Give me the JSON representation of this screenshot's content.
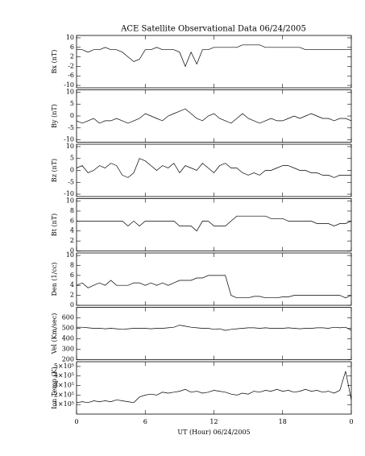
{
  "chart_data": [
    {
      "type": "line",
      "title": "ACE Satellite Observational Data  06/24/2005",
      "y_label": "Bx (nT)",
      "x": [
        0,
        0.5,
        1,
        1.5,
        2,
        2.5,
        3,
        3.5,
        4,
        4.5,
        5,
        5.5,
        6,
        6.5,
        7,
        7.5,
        8,
        8.5,
        9,
        9.5,
        10,
        10.5,
        11,
        11.5,
        12,
        12.5,
        13,
        13.5,
        14,
        14.5,
        15,
        15.5,
        16,
        16.5,
        17,
        17.5,
        18,
        18.5,
        19,
        19.5,
        20,
        20.5,
        21,
        21.5,
        22,
        22.5,
        23,
        23.5,
        24
      ],
      "values": [
        5,
        5,
        4,
        5,
        5,
        6,
        5,
        5,
        4,
        2,
        0,
        1,
        5,
        5,
        6,
        5,
        5,
        5,
        4,
        -2,
        4,
        -1,
        5,
        5,
        6,
        6,
        6,
        6,
        6,
        7,
        7,
        7,
        7,
        6,
        6,
        6,
        6,
        6,
        6,
        6,
        5,
        5,
        5,
        5,
        5,
        5,
        5,
        5,
        5
      ],
      "color": "#000000",
      "xlim": [
        0,
        24
      ],
      "xticks": [
        0,
        6,
        12,
        18,
        24
      ],
      "ylim": [
        -11,
        11
      ],
      "yticks": [
        -10,
        -6,
        -2,
        2,
        6,
        10
      ]
    },
    {
      "type": "line",
      "y_label": "By (nT)",
      "x": [
        0,
        0.5,
        1,
        1.5,
        2,
        2.5,
        3,
        3.5,
        4,
        4.5,
        5,
        5.5,
        6,
        6.5,
        7,
        7.5,
        8,
        8.5,
        9,
        9.5,
        10,
        10.5,
        11,
        11.5,
        12,
        12.5,
        13,
        13.5,
        14,
        14.5,
        15,
        15.5,
        16,
        16.5,
        17,
        17.5,
        18,
        18.5,
        19,
        19.5,
        20,
        20.5,
        21,
        21.5,
        22,
        22.5,
        23,
        23.5,
        24
      ],
      "values": [
        -2,
        -3,
        -2,
        -1,
        -3,
        -2,
        -2,
        -1,
        -2,
        -3,
        -2,
        -1,
        1,
        0,
        -1,
        -2,
        0,
        1,
        2,
        3,
        1,
        -1,
        -2,
        0,
        1,
        -1,
        -2,
        -3,
        -1,
        1,
        -1,
        -2,
        -3,
        -2,
        -1,
        -2,
        -2,
        -1,
        0,
        -1,
        0,
        1,
        0,
        -1,
        -1,
        -2,
        -1,
        -1,
        -2
      ],
      "color": "#000000",
      "xlim": [
        0,
        24
      ],
      "xticks": [
        0,
        6,
        12,
        18,
        24
      ],
      "ylim": [
        -11,
        11
      ],
      "yticks": [
        -10,
        -5,
        0,
        5,
        10
      ]
    },
    {
      "type": "line",
      "y_label": "Bz (nT)",
      "x": [
        0,
        0.5,
        1,
        1.5,
        2,
        2.5,
        3,
        3.5,
        4,
        4.5,
        5,
        5.5,
        6,
        6.5,
        7,
        7.5,
        8,
        8.5,
        9,
        9.5,
        10,
        10.5,
        11,
        11.5,
        12,
        12.5,
        13,
        13.5,
        14,
        14.5,
        15,
        15.5,
        16,
        16.5,
        17,
        17.5,
        18,
        18.5,
        19,
        19.5,
        20,
        20.5,
        21,
        21.5,
        22,
        22.5,
        23,
        23.5,
        24
      ],
      "values": [
        1,
        2,
        -1,
        0,
        2,
        1,
        3,
        2,
        -2,
        -3,
        -1,
        5,
        4,
        2,
        0,
        2,
        1,
        3,
        -1,
        2,
        1,
        0,
        3,
        1,
        -1,
        2,
        3,
        1,
        1,
        -1,
        -2,
        -1,
        -2,
        0,
        0,
        1,
        2,
        2,
        1,
        0,
        0,
        -1,
        -1,
        -2,
        -2,
        -3,
        -2,
        -2,
        -2
      ],
      "color": "#000000",
      "xlim": [
        0,
        24
      ],
      "xticks": [
        0,
        6,
        12,
        18,
        24
      ],
      "ylim": [
        -11,
        11
      ],
      "yticks": [
        -10,
        -5,
        0,
        5,
        10
      ]
    },
    {
      "type": "line",
      "y_label": "Bt (nT)",
      "x": [
        0,
        0.5,
        1,
        1.5,
        2,
        2.5,
        3,
        3.5,
        4,
        4.5,
        5,
        5.5,
        6,
        6.5,
        7,
        7.5,
        8,
        8.5,
        9,
        9.5,
        10,
        10.5,
        11,
        11.5,
        12,
        12.5,
        13,
        13.5,
        14,
        14.5,
        15,
        15.5,
        16,
        16.5,
        17,
        17.5,
        18,
        18.5,
        19,
        19.5,
        20,
        20.5,
        21,
        21.5,
        22,
        22.5,
        23,
        23.5,
        24
      ],
      "values": [
        6,
        6,
        6,
        6,
        6,
        6,
        6,
        6,
        6,
        5,
        6,
        5,
        6,
        6,
        6,
        6,
        6,
        6,
        5,
        5,
        5,
        4,
        6,
        6,
        5,
        5,
        5,
        6,
        7,
        7,
        7,
        7,
        7,
        7,
        6.5,
        6.5,
        6.5,
        6,
        6,
        6,
        6,
        6,
        5.5,
        5.5,
        5.5,
        5,
        5.5,
        5.5,
        6
      ],
      "color": "#000000",
      "xlim": [
        0,
        24
      ],
      "xticks": [
        0,
        6,
        12,
        18,
        24
      ],
      "ylim": [
        0,
        10.5
      ],
      "yticks": [
        0,
        2,
        4,
        6,
        8,
        10
      ]
    },
    {
      "type": "line",
      "y_label": "Den (1/cc)",
      "x": [
        0,
        0.5,
        1,
        1.5,
        2,
        2.5,
        3,
        3.5,
        4,
        4.5,
        5,
        5.5,
        6,
        6.5,
        7,
        7.5,
        8,
        8.5,
        9,
        9.5,
        10,
        10.5,
        11,
        11.5,
        12,
        12.5,
        13,
        13.5,
        14,
        14.5,
        15,
        15.5,
        16,
        16.5,
        17,
        17.5,
        18,
        18.5,
        19,
        19.5,
        20,
        20.5,
        21,
        21.5,
        22,
        22.5,
        23,
        23.5,
        24
      ],
      "values": [
        4,
        4.5,
        3.5,
        4,
        4.5,
        4,
        5,
        4,
        4,
        4,
        4.5,
        4.5,
        4,
        4.5,
        4,
        4.5,
        4,
        4.5,
        5,
        5,
        5,
        5.5,
        5.5,
        6,
        6,
        6,
        6,
        2,
        1.5,
        1.5,
        1.5,
        1.8,
        1.8,
        1.5,
        1.5,
        1.5,
        1.7,
        1.7,
        2,
        2,
        2,
        2,
        2,
        2,
        2,
        2,
        2,
        1.5,
        2
      ],
      "color": "#000000",
      "xlim": [
        0,
        24
      ],
      "xticks": [
        0,
        6,
        12,
        18,
        24
      ],
      "ylim": [
        0,
        10.5
      ],
      "yticks": [
        0,
        2,
        4,
        6,
        8,
        10
      ]
    },
    {
      "type": "line",
      "y_label": "Vel (Km/sec)",
      "x": [
        0,
        0.5,
        1,
        1.5,
        2,
        2.5,
        3,
        3.5,
        4,
        4.5,
        5,
        5.5,
        6,
        6.5,
        7,
        7.5,
        8,
        8.5,
        9,
        9.5,
        10,
        10.5,
        11,
        11.5,
        12,
        12.5,
        13,
        13.5,
        14,
        14.5,
        15,
        15.5,
        16,
        16.5,
        17,
        17.5,
        18,
        18.5,
        19,
        19.5,
        20,
        20.5,
        21,
        21.5,
        22,
        22.5,
        23,
        23.5,
        24
      ],
      "values": [
        510,
        510,
        505,
        500,
        500,
        495,
        500,
        495,
        490,
        495,
        500,
        500,
        500,
        495,
        500,
        500,
        505,
        510,
        530,
        520,
        510,
        505,
        500,
        500,
        490,
        495,
        480,
        490,
        495,
        500,
        505,
        505,
        500,
        505,
        500,
        500,
        500,
        505,
        500,
        495,
        500,
        500,
        505,
        505,
        500,
        510,
        505,
        510,
        480
      ],
      "color": "#000000",
      "xlim": [
        0,
        24
      ],
      "xticks": [
        0,
        6,
        12,
        18,
        24
      ],
      "ylim": [
        200,
        700
      ],
      "yticks": [
        200,
        300,
        400,
        500,
        600
      ]
    },
    {
      "type": "line",
      "y_label": "Ion Temp (K)",
      "x_label": "UT (Hour)  06/24/2005",
      "x": [
        0,
        0.5,
        1,
        1.5,
        2,
        2.5,
        3,
        3.5,
        4,
        4.5,
        5,
        5.5,
        6,
        6.5,
        7,
        7.5,
        8,
        8.5,
        9,
        9.5,
        10,
        10.5,
        11,
        11.5,
        12,
        12.5,
        13,
        13.5,
        14,
        14.5,
        15,
        15.5,
        16,
        16.5,
        17,
        17.5,
        18,
        18.5,
        19,
        19.5,
        20,
        20.5,
        21,
        21.5,
        22,
        22.5,
        23,
        23.5,
        24
      ],
      "values": [
        120000,
        130000,
        120000,
        140000,
        130000,
        140000,
        130000,
        150000,
        140000,
        130000,
        120000,
        180000,
        200000,
        210000,
        200000,
        230000,
        220000,
        230000,
        240000,
        260000,
        230000,
        240000,
        220000,
        230000,
        250000,
        240000,
        230000,
        210000,
        200000,
        220000,
        210000,
        240000,
        230000,
        250000,
        240000,
        260000,
        240000,
        250000,
        230000,
        240000,
        260000,
        240000,
        250000,
        230000,
        240000,
        220000,
        250000,
        450000,
        150000
      ],
      "color": "#000000",
      "xlim": [
        0,
        24
      ],
      "xticks": [
        0,
        6,
        12,
        18,
        {
          "value": 24,
          "label": "0"
        }
      ],
      "ylim": [
        0,
        550000
      ],
      "yticks": [
        {
          "value": 100000,
          "label": "1×10⁵"
        },
        {
          "value": 200000,
          "label": "2×10⁵"
        },
        {
          "value": 300000,
          "label": "3×10⁵"
        },
        {
          "value": 400000,
          "label": "4×10⁵"
        },
        {
          "value": 500000,
          "label": "5×10⁵"
        }
      ]
    }
  ]
}
